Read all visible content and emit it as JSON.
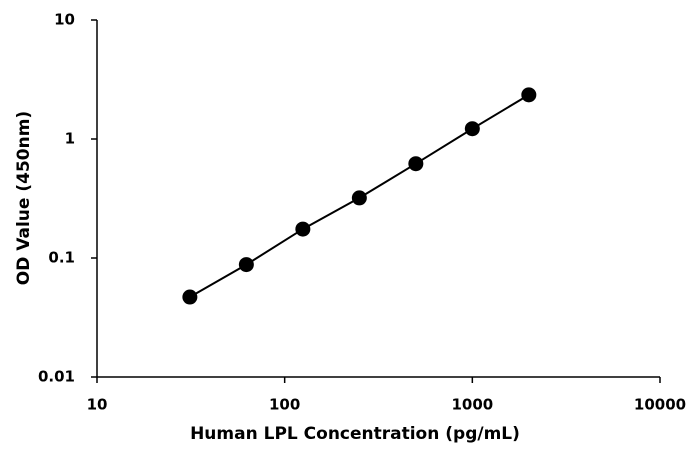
{
  "chart_data": {
    "type": "line",
    "xlabel": "Human LPL Concentration (pg/mL)",
    "ylabel": "OD Value (450nm)",
    "x": [
      31.25,
      62.5,
      125,
      250,
      500,
      1000,
      2000
    ],
    "series": [
      {
        "values": [
          0.047,
          0.088,
          0.175,
          0.32,
          0.62,
          1.22,
          2.35
        ],
        "color": "#000000"
      }
    ],
    "xscale": "log",
    "yscale": "log",
    "xlim": [
      10,
      10000
    ],
    "xticks": [
      10,
      100,
      1000,
      10000
    ],
    "ylim": [
      0.01,
      10
    ],
    "yticks": [
      0.01,
      0.1,
      1,
      10
    ],
    "grid": false,
    "markers": true
  }
}
